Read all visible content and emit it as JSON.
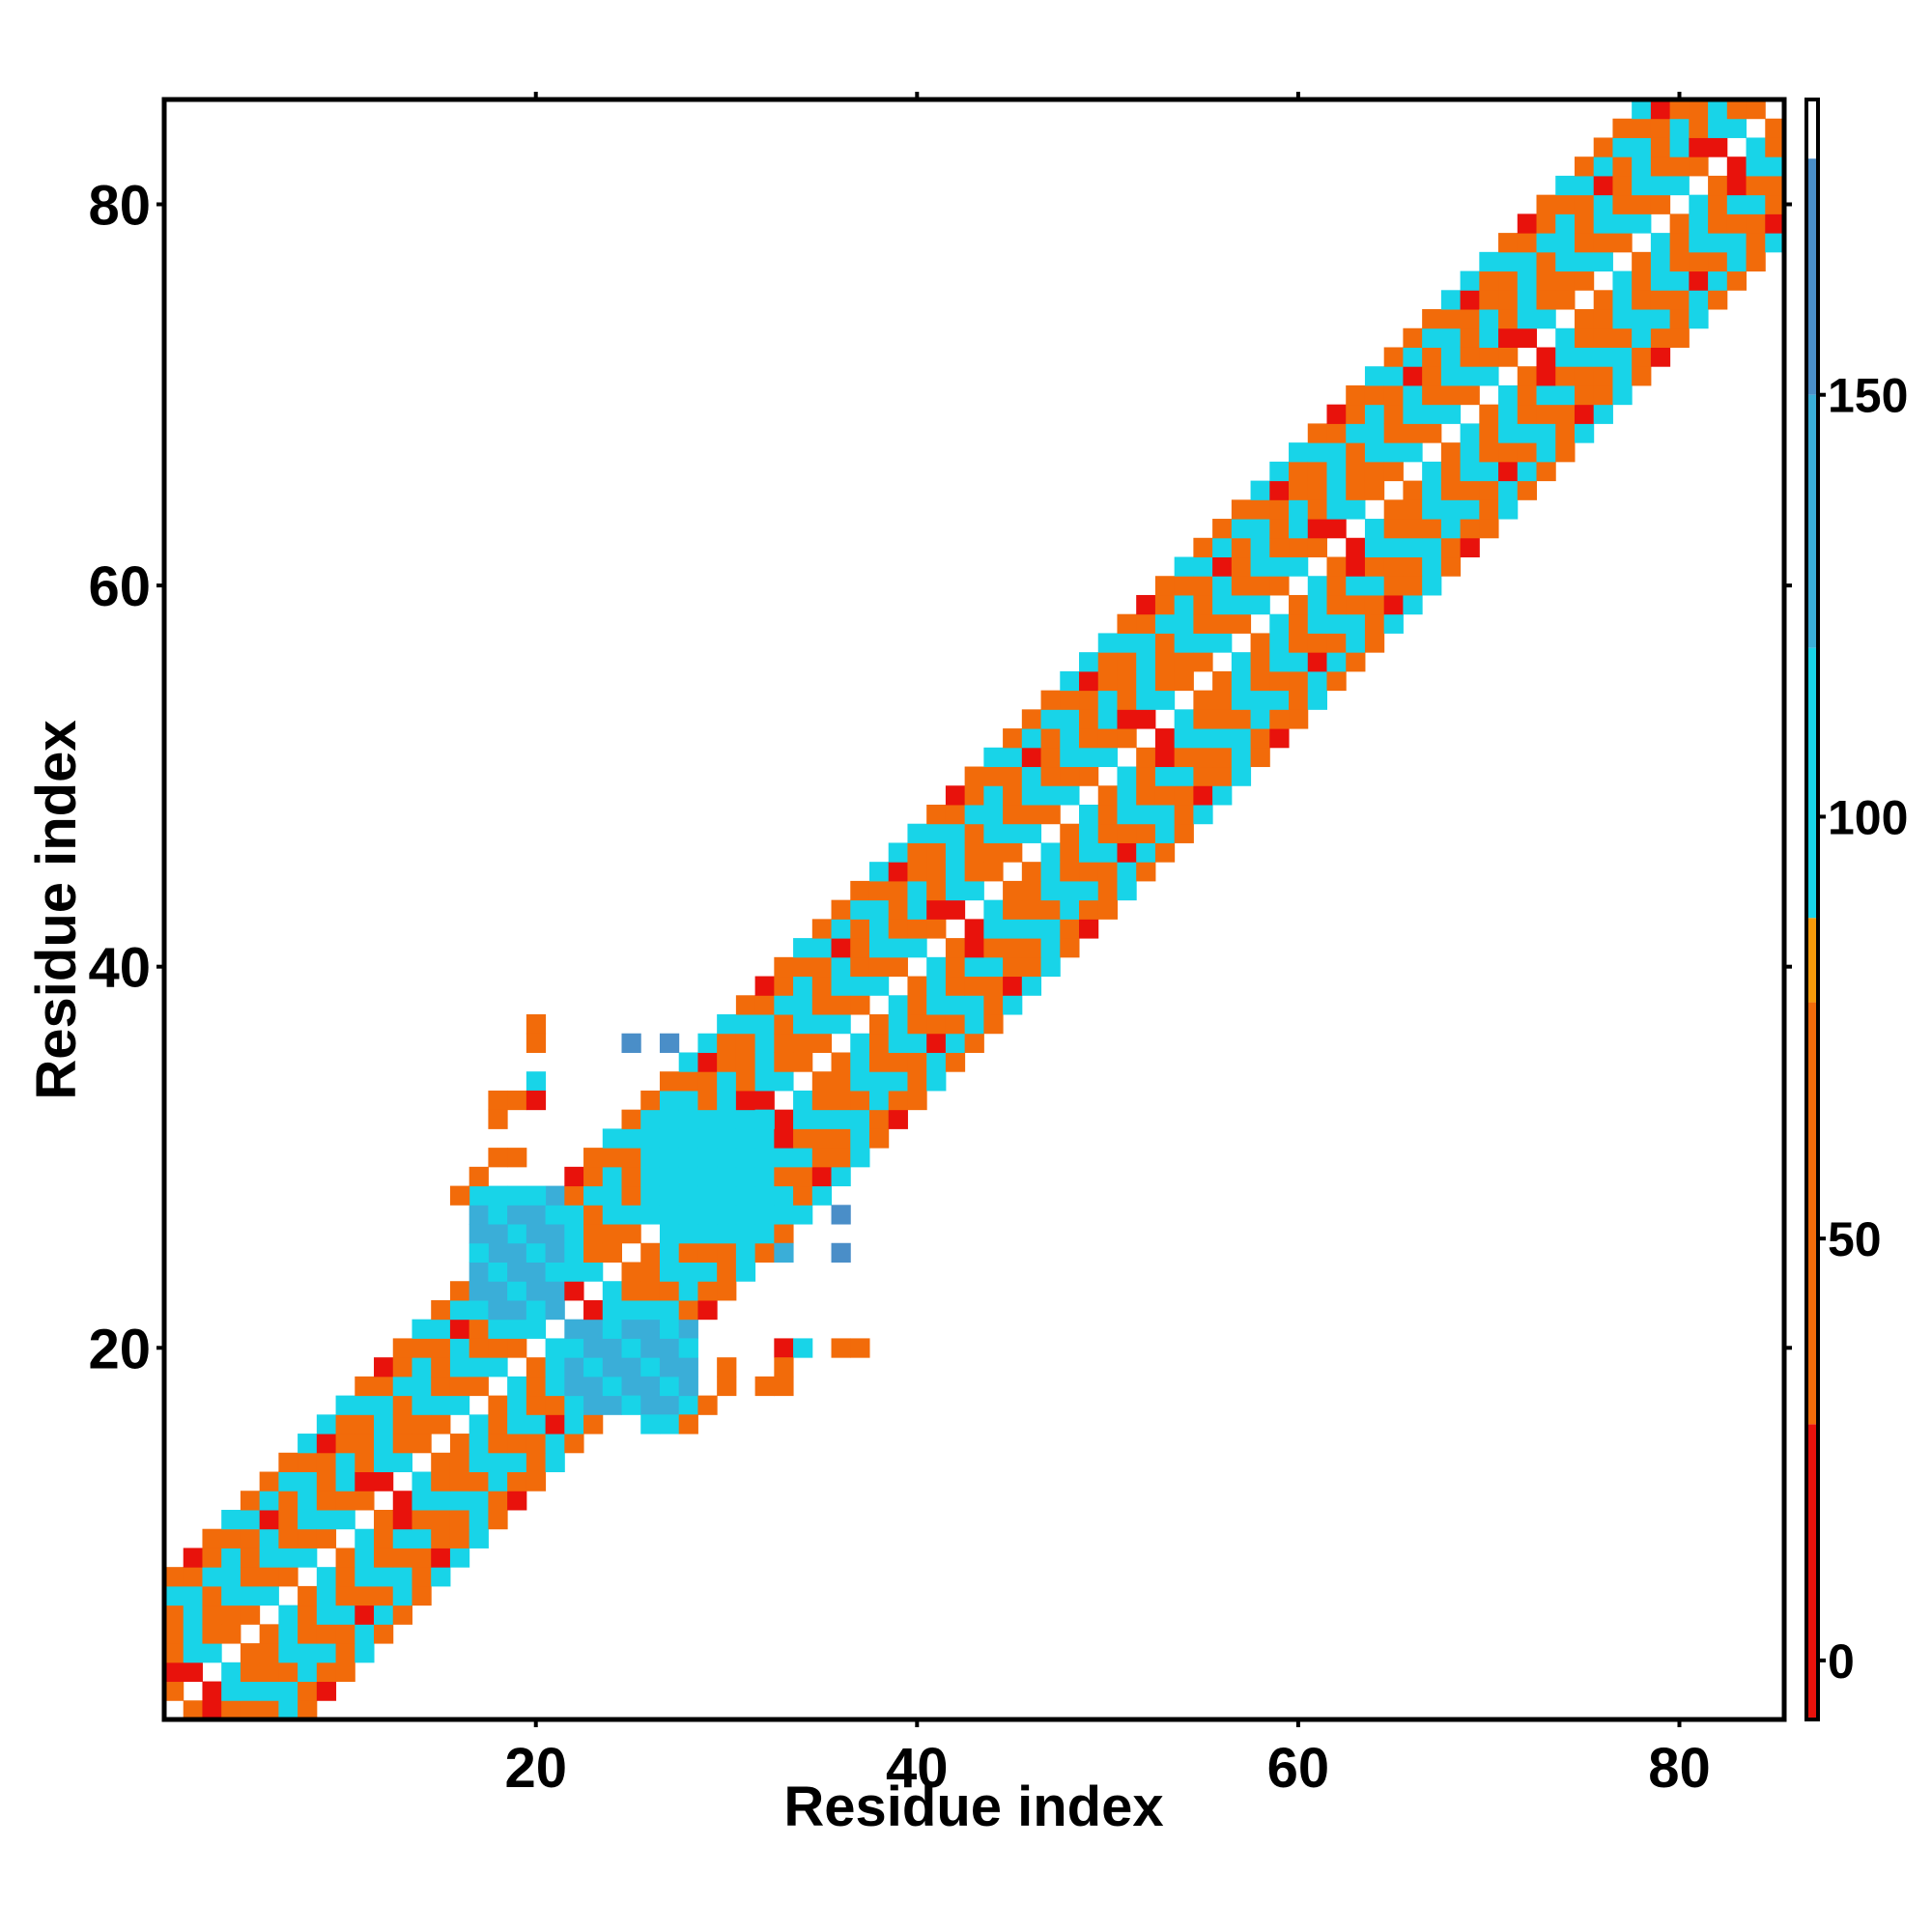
{
  "chart_data": {
    "type": "heatmap",
    "title": "",
    "xlabel": "Residue index",
    "ylabel": "Residue index",
    "xlim": [
      0.5,
      85.5
    ],
    "ylim": [
      0.5,
      85.5
    ],
    "x_ticks": [
      20,
      40,
      60,
      80
    ],
    "y_ticks": [
      20,
      40,
      60,
      80
    ],
    "colorbar": {
      "range": [
        -7,
        185
      ],
      "ticks": [
        0,
        50,
        100,
        150
      ],
      "bands": [
        {
          "from": -7,
          "to": 28,
          "color": "#e8120c"
        },
        {
          "from": 28,
          "to": 78,
          "color": "#f26b0a"
        },
        {
          "from": 78,
          "to": 88,
          "color": "#f59a0a"
        },
        {
          "from": 88,
          "to": 120,
          "color": "#18d4e8"
        },
        {
          "from": 120,
          "to": 150,
          "color": "#3aaed8"
        },
        {
          "from": 150,
          "to": 178,
          "color": "#4a8ec8"
        },
        {
          "from": 178,
          "to": 185,
          "color": "#ffffff"
        }
      ]
    },
    "diagonal_band": {
      "start": 1,
      "end": 85,
      "offsets": [
        1,
        2,
        3,
        4,
        5,
        6,
        7
      ],
      "note": "values along near-diagonal contacts, pattern alternates by offset"
    },
    "off_diagonal_cells": [
      {
        "x": 20,
        "y": 37,
        "v": 40
      },
      {
        "x": 20,
        "y": 36,
        "v": 40
      },
      {
        "x": 25,
        "y": 36,
        "v": 160
      },
      {
        "x": 27,
        "y": 36,
        "v": 160
      },
      {
        "x": 20,
        "y": 34,
        "v": 95
      },
      {
        "x": 18,
        "y": 33,
        "v": 40
      },
      {
        "x": 19,
        "y": 33,
        "v": 40
      },
      {
        "x": 20,
        "y": 33,
        "v": 5
      },
      {
        "x": 18,
        "y": 32,
        "v": 40
      },
      {
        "x": 18,
        "y": 30,
        "v": 40
      },
      {
        "x": 19,
        "y": 30,
        "v": 40
      },
      {
        "x": 17,
        "y": 29,
        "v": 40
      },
      {
        "x": 16,
        "y": 28,
        "v": 75
      },
      {
        "x": 17,
        "y": 28,
        "v": 100
      },
      {
        "x": 18,
        "y": 28,
        "v": 110
      },
      {
        "x": 19,
        "y": 28,
        "v": 110
      },
      {
        "x": 33,
        "y": 27,
        "v": 95
      },
      {
        "x": 34,
        "y": 27,
        "v": 95
      },
      {
        "x": 36,
        "y": 27,
        "v": 160
      },
      {
        "x": 36,
        "y": 25,
        "v": 160
      },
      {
        "x": 33,
        "y": 25,
        "v": 130
      },
      {
        "x": 33,
        "y": 20,
        "v": 5
      },
      {
        "x": 34,
        "y": 20,
        "v": 95
      },
      {
        "x": 36,
        "y": 20,
        "v": 40
      },
      {
        "x": 37,
        "y": 20,
        "v": 40
      },
      {
        "x": 30,
        "y": 19,
        "v": 40
      },
      {
        "x": 33,
        "y": 19,
        "v": 40
      },
      {
        "x": 30,
        "y": 18,
        "v": 40
      },
      {
        "x": 32,
        "y": 18,
        "v": 40
      },
      {
        "x": 33,
        "y": 18,
        "v": 40
      },
      {
        "x": 29,
        "y": 17,
        "v": 40
      },
      {
        "x": 26,
        "y": 16,
        "v": 110
      },
      {
        "x": 27,
        "y": 16,
        "v": 110
      },
      {
        "x": 28,
        "y": 16,
        "v": 75
      }
    ],
    "cluster_blocks": [
      {
        "x0": 17,
        "x1": 21,
        "y0": 22,
        "y1": 27,
        "v": 130
      },
      {
        "x0": 24,
        "x1": 28,
        "y0": 17,
        "y1": 21,
        "v": 130
      },
      {
        "x0": 26,
        "x1": 32,
        "y0": 27,
        "y1": 32,
        "v": 110
      }
    ]
  }
}
